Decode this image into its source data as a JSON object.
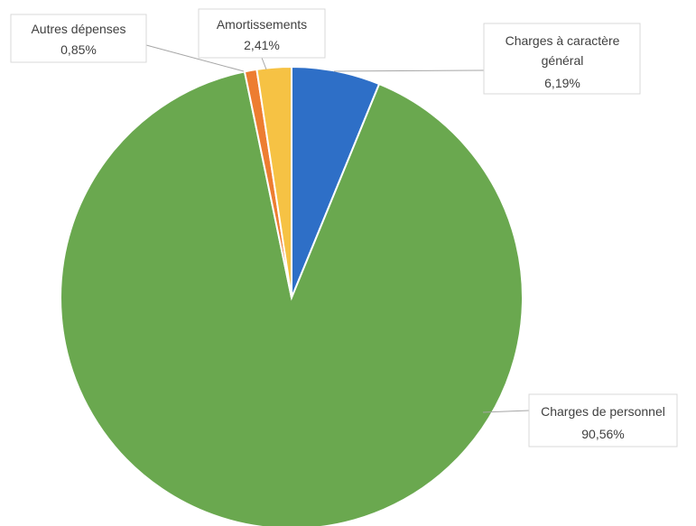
{
  "chart_data": {
    "type": "pie",
    "title": "",
    "slices": [
      {
        "label": "Charges à caractère général",
        "label_lines": [
          "Charges à caractère",
          "général"
        ],
        "value": 6.19,
        "value_text": "6,19%",
        "color": "#2e6fc7"
      },
      {
        "label": "Charges de personnel",
        "label_lines": [
          "Charges de personnel"
        ],
        "value": 90.56,
        "value_text": "90,56%",
        "color": "#6aa84f"
      },
      {
        "label": "Autres dépenses",
        "label_lines": [
          "Autres dépenses"
        ],
        "value": 0.85,
        "value_text": "0,85%",
        "color": "#ed7d31"
      },
      {
        "label": "Amortissements",
        "label_lines": [
          "Amortissements"
        ],
        "value": 2.41,
        "value_text": "2,41%",
        "color": "#f6c244"
      }
    ],
    "start_angle_deg": 0,
    "direction": "clockwise",
    "legend": "none",
    "label_style": "callout"
  }
}
